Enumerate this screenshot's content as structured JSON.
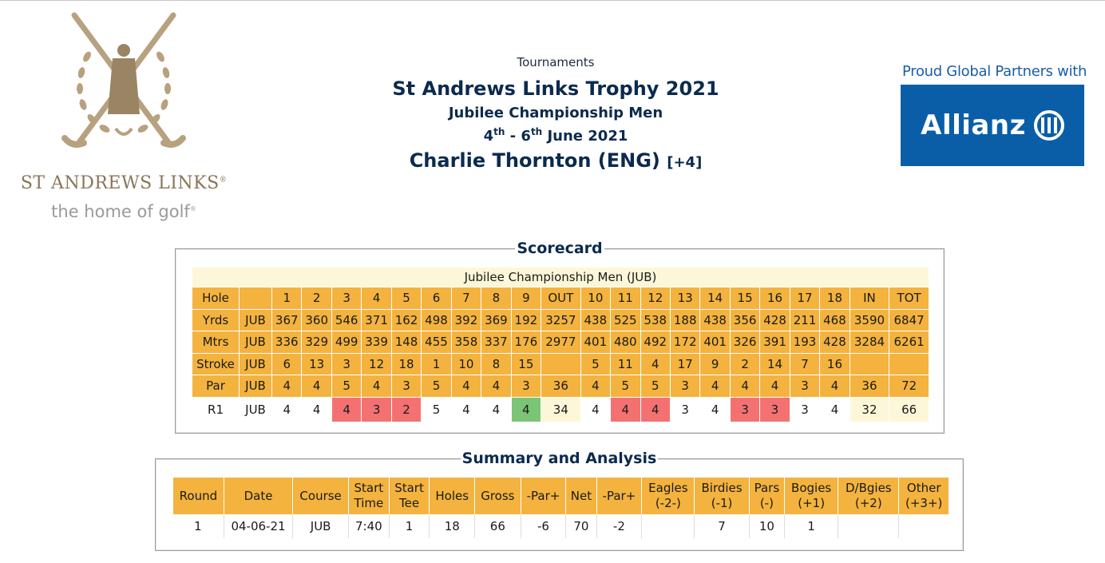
{
  "logo": {
    "brand": "ST ANDREWS LINKS",
    "tagline": "the home of golf",
    "icon": "st-andrews-crest-icon"
  },
  "header": {
    "crumb": "Tournaments",
    "title": "St Andrews Links Trophy 2021",
    "subtitle": "Jubilee Championship Men",
    "dates": {
      "d1": "4",
      "s1": "th",
      "mid": " - 6",
      "s2": "th",
      "rest": " June 2021"
    },
    "player": "Charlie Thornton (ENG)",
    "handicap": "[+4]"
  },
  "partner": {
    "caption": "Proud Global Partners with",
    "brand": "Allianz"
  },
  "scorecard": {
    "legend": "Scorecard",
    "caption": "Jubilee Championship Men (JUB)",
    "rows": [
      {
        "label": "Hole",
        "course": "",
        "cells": [
          "1",
          "2",
          "3",
          "4",
          "5",
          "6",
          "7",
          "8",
          "9",
          "OUT",
          "10",
          "11",
          "12",
          "13",
          "14",
          "15",
          "16",
          "17",
          "18",
          "IN",
          "TOT"
        ]
      },
      {
        "label": "Yrds",
        "course": "JUB",
        "cells": [
          "367",
          "360",
          "546",
          "371",
          "162",
          "498",
          "392",
          "369",
          "192",
          "3257",
          "438",
          "525",
          "538",
          "188",
          "438",
          "356",
          "428",
          "211",
          "468",
          "3590",
          "6847"
        ]
      },
      {
        "label": "Mtrs",
        "course": "JUB",
        "cells": [
          "336",
          "329",
          "499",
          "339",
          "148",
          "455",
          "358",
          "337",
          "176",
          "2977",
          "401",
          "480",
          "492",
          "172",
          "401",
          "326",
          "391",
          "193",
          "428",
          "3284",
          "6261"
        ]
      },
      {
        "label": "Stroke",
        "course": "JUB",
        "cells": [
          "6",
          "13",
          "3",
          "12",
          "18",
          "1",
          "10",
          "8",
          "15",
          "",
          "5",
          "11",
          "4",
          "17",
          "9",
          "2",
          "14",
          "7",
          "16",
          "",
          ""
        ]
      },
      {
        "label": "Par",
        "course": "JUB",
        "cells": [
          "4",
          "4",
          "5",
          "4",
          "3",
          "5",
          "4",
          "4",
          "3",
          "36",
          "4",
          "5",
          "5",
          "3",
          "4",
          "4",
          "4",
          "3",
          "4",
          "36",
          "72"
        ]
      }
    ],
    "round": {
      "label": "R1",
      "course": "JUB",
      "cells": [
        "4",
        "4",
        "4",
        "3",
        "2",
        "5",
        "4",
        "4",
        "4",
        "34",
        "4",
        "4",
        "4",
        "3",
        "4",
        "3",
        "3",
        "3",
        "4",
        "32",
        "66"
      ],
      "status": [
        "",
        "",
        "red",
        "red",
        "red",
        "",
        "",
        "",
        "green",
        "tot",
        "",
        "red",
        "red",
        "",
        "",
        "red",
        "red",
        "",
        "",
        "tot",
        "tot"
      ]
    }
  },
  "summary": {
    "legend": "Summary and Analysis",
    "headers": [
      [
        "Round"
      ],
      [
        "Date"
      ],
      [
        "Course"
      ],
      [
        "Start",
        "Time"
      ],
      [
        "Start",
        "Tee"
      ],
      [
        "Holes"
      ],
      [
        "Gross"
      ],
      [
        "-Par+"
      ],
      [
        "Net"
      ],
      [
        "-Par+"
      ],
      [
        "Eagles",
        "(-2-)"
      ],
      [
        "Birdies",
        "(-1)"
      ],
      [
        "Pars",
        "(-)"
      ],
      [
        "Bogies",
        "(+1)"
      ],
      [
        "D/Bgies",
        "(+2)"
      ],
      [
        "Other",
        "(+3+)"
      ]
    ],
    "row": [
      "1",
      "04-06-21",
      "JUB",
      "7:40",
      "1",
      "18",
      "66",
      "-6",
      "70",
      "-2",
      "",
      "7",
      "10",
      "1",
      "",
      ""
    ]
  }
}
